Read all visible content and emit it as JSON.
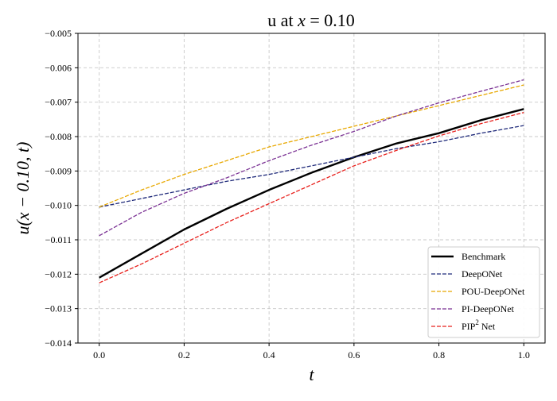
{
  "chart_data": {
    "type": "line",
    "title": "u at x = 0.10",
    "title_parts": {
      "prefix": "u at ",
      "var": "x",
      "suffix": " = 0.10"
    },
    "xlabel": "t",
    "ylabel": "u(x − 0.10, t)",
    "xlim": [
      -0.05,
      1.05
    ],
    "ylim": [
      -0.014,
      -0.005
    ],
    "xticks": [
      0.0,
      0.2,
      0.4,
      0.6,
      0.8,
      1.0
    ],
    "xtick_labels": [
      "0.0",
      "0.2",
      "0.4",
      "0.6",
      "0.8",
      "1.0"
    ],
    "yticks": [
      -0.014,
      -0.013,
      -0.012,
      -0.011,
      -0.01,
      -0.009,
      -0.008,
      -0.007,
      -0.006,
      -0.005
    ],
    "ytick_labels": [
      "−0.014",
      "−0.013",
      "−0.012",
      "−0.011",
      "−0.010",
      "−0.009",
      "−0.008",
      "−0.007",
      "−0.006",
      "−0.005"
    ],
    "grid": true,
    "legend_position": "bottom-right",
    "x": [
      0.0,
      0.1,
      0.2,
      0.3,
      0.4,
      0.5,
      0.6,
      0.7,
      0.8,
      0.9,
      1.0
    ],
    "series": [
      {
        "name": "Benchmark",
        "color": "#000000",
        "style": "solid",
        "width": 2.4,
        "values": [
          -0.0121,
          -0.0114,
          -0.0107,
          -0.0101,
          -0.00955,
          -0.00905,
          -0.0086,
          -0.0082,
          -0.0079,
          -0.00752,
          -0.0072
        ]
      },
      {
        "name": "DeepONet",
        "color": "#1f2a7a",
        "style": "dashed",
        "width": 1.3,
        "values": [
          -0.01005,
          -0.0098,
          -0.00955,
          -0.0093,
          -0.0091,
          -0.00885,
          -0.0086,
          -0.00835,
          -0.00815,
          -0.0079,
          -0.00768
        ]
      },
      {
        "name": "POU-DeepONet",
        "color": "#e8a800",
        "style": "dashed",
        "width": 1.3,
        "values": [
          -0.01005,
          -0.00955,
          -0.0091,
          -0.0087,
          -0.0083,
          -0.008,
          -0.0077,
          -0.0074,
          -0.0071,
          -0.0068,
          -0.0065
        ]
      },
      {
        "name": "PI-DeepONet",
        "color": "#7b3294",
        "style": "dashed",
        "width": 1.3,
        "values": [
          -0.01088,
          -0.0102,
          -0.00965,
          -0.0092,
          -0.0087,
          -0.00825,
          -0.00785,
          -0.0074,
          -0.00702,
          -0.00668,
          -0.00635
        ]
      },
      {
        "name": "PIP² Net",
        "legend_main": "PIP",
        "legend_sup": "2",
        "legend_tail": " Net",
        "color": "#e8201c",
        "style": "dashed",
        "width": 1.3,
        "values": [
          -0.01225,
          -0.0117,
          -0.0111,
          -0.0105,
          -0.00995,
          -0.0094,
          -0.00885,
          -0.0084,
          -0.00798,
          -0.00762,
          -0.0073
        ]
      }
    ]
  }
}
